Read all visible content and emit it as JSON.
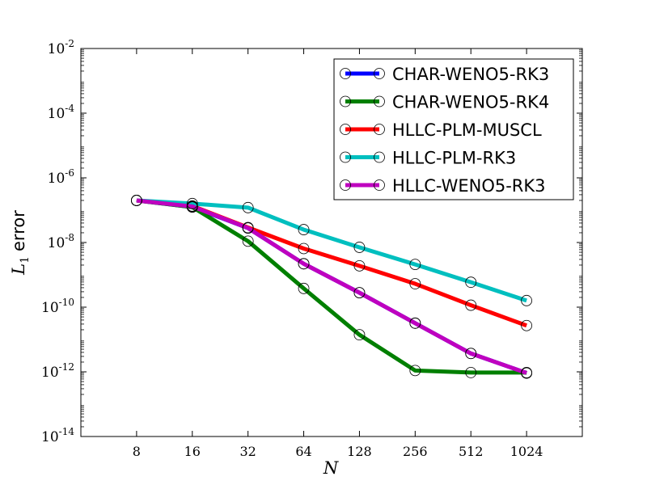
{
  "chart_data": {
    "type": "line",
    "title": "",
    "xlabel": "N",
    "ylabel": "L1 error",
    "ylabel_main": "L",
    "ylabel_sub": "1",
    "ylabel_rest": "error",
    "x_scale": "log2",
    "y_scale": "log10",
    "xlim": [
      4,
      2048
    ],
    "ylim": [
      1e-14,
      0.01
    ],
    "x_ticks": [
      8,
      16,
      32,
      64,
      128,
      256,
      512,
      1024
    ],
    "x_tick_labels": [
      "8",
      "16",
      "32",
      "64",
      "128",
      "256",
      "512",
      "1024"
    ],
    "y_ticks": [
      1e-14,
      1e-12,
      1e-10,
      1e-08,
      1e-06,
      0.0001,
      0.01
    ],
    "y_tick_base": "10",
    "y_tick_exponents": [
      "-14",
      "-12",
      "-10",
      "-8",
      "-6",
      "-4",
      "-2"
    ],
    "grid": false,
    "legend_position": "top-right",
    "marker": "open-circle",
    "series": [
      {
        "name": "CHAR-WENO5-RK3",
        "color": "#0000ff",
        "x": [
          8,
          16,
          32,
          64,
          128,
          256,
          512,
          1024
        ],
        "y": [
          2e-07,
          1.25e-07,
          2.8e-08,
          2.2e-09,
          2.8e-10,
          3.2e-11,
          3.7e-12,
          9.2e-13
        ]
      },
      {
        "name": "CHAR-WENO5-RK4",
        "color": "#007f00",
        "x": [
          8,
          16,
          32,
          64,
          128,
          256,
          512,
          1024
        ],
        "y": [
          2e-07,
          1.25e-07,
          1.1e-08,
          3.8e-10,
          1.4e-11,
          1.1e-12,
          9.5e-13,
          9.5e-13
        ]
      },
      {
        "name": "HLLC-PLM-MUSCL",
        "color": "#ff0000",
        "x": [
          8,
          16,
          32,
          64,
          128,
          256,
          512,
          1024
        ],
        "y": [
          2e-07,
          1.35e-07,
          2.9e-08,
          6.5e-09,
          1.9e-09,
          5.3e-10,
          1.15e-10,
          2.7e-11
        ]
      },
      {
        "name": "HLLC-PLM-RK3",
        "color": "#00bfbf",
        "x": [
          8,
          16,
          32,
          64,
          128,
          256,
          512,
          1024
        ],
        "y": [
          2e-07,
          1.6e-07,
          1.2e-07,
          2.5e-08,
          7.1e-09,
          2.1e-09,
          5.9e-10,
          1.6e-10
        ]
      },
      {
        "name": "HLLC-WENO5-RK3",
        "color": "#bf00bf",
        "x": [
          8,
          16,
          32,
          64,
          128,
          256,
          512,
          1024
        ],
        "y": [
          2e-07,
          1.3e-07,
          2.8e-08,
          2.2e-09,
          2.8e-10,
          3.2e-11,
          3.7e-12,
          9.2e-13
        ]
      }
    ]
  }
}
